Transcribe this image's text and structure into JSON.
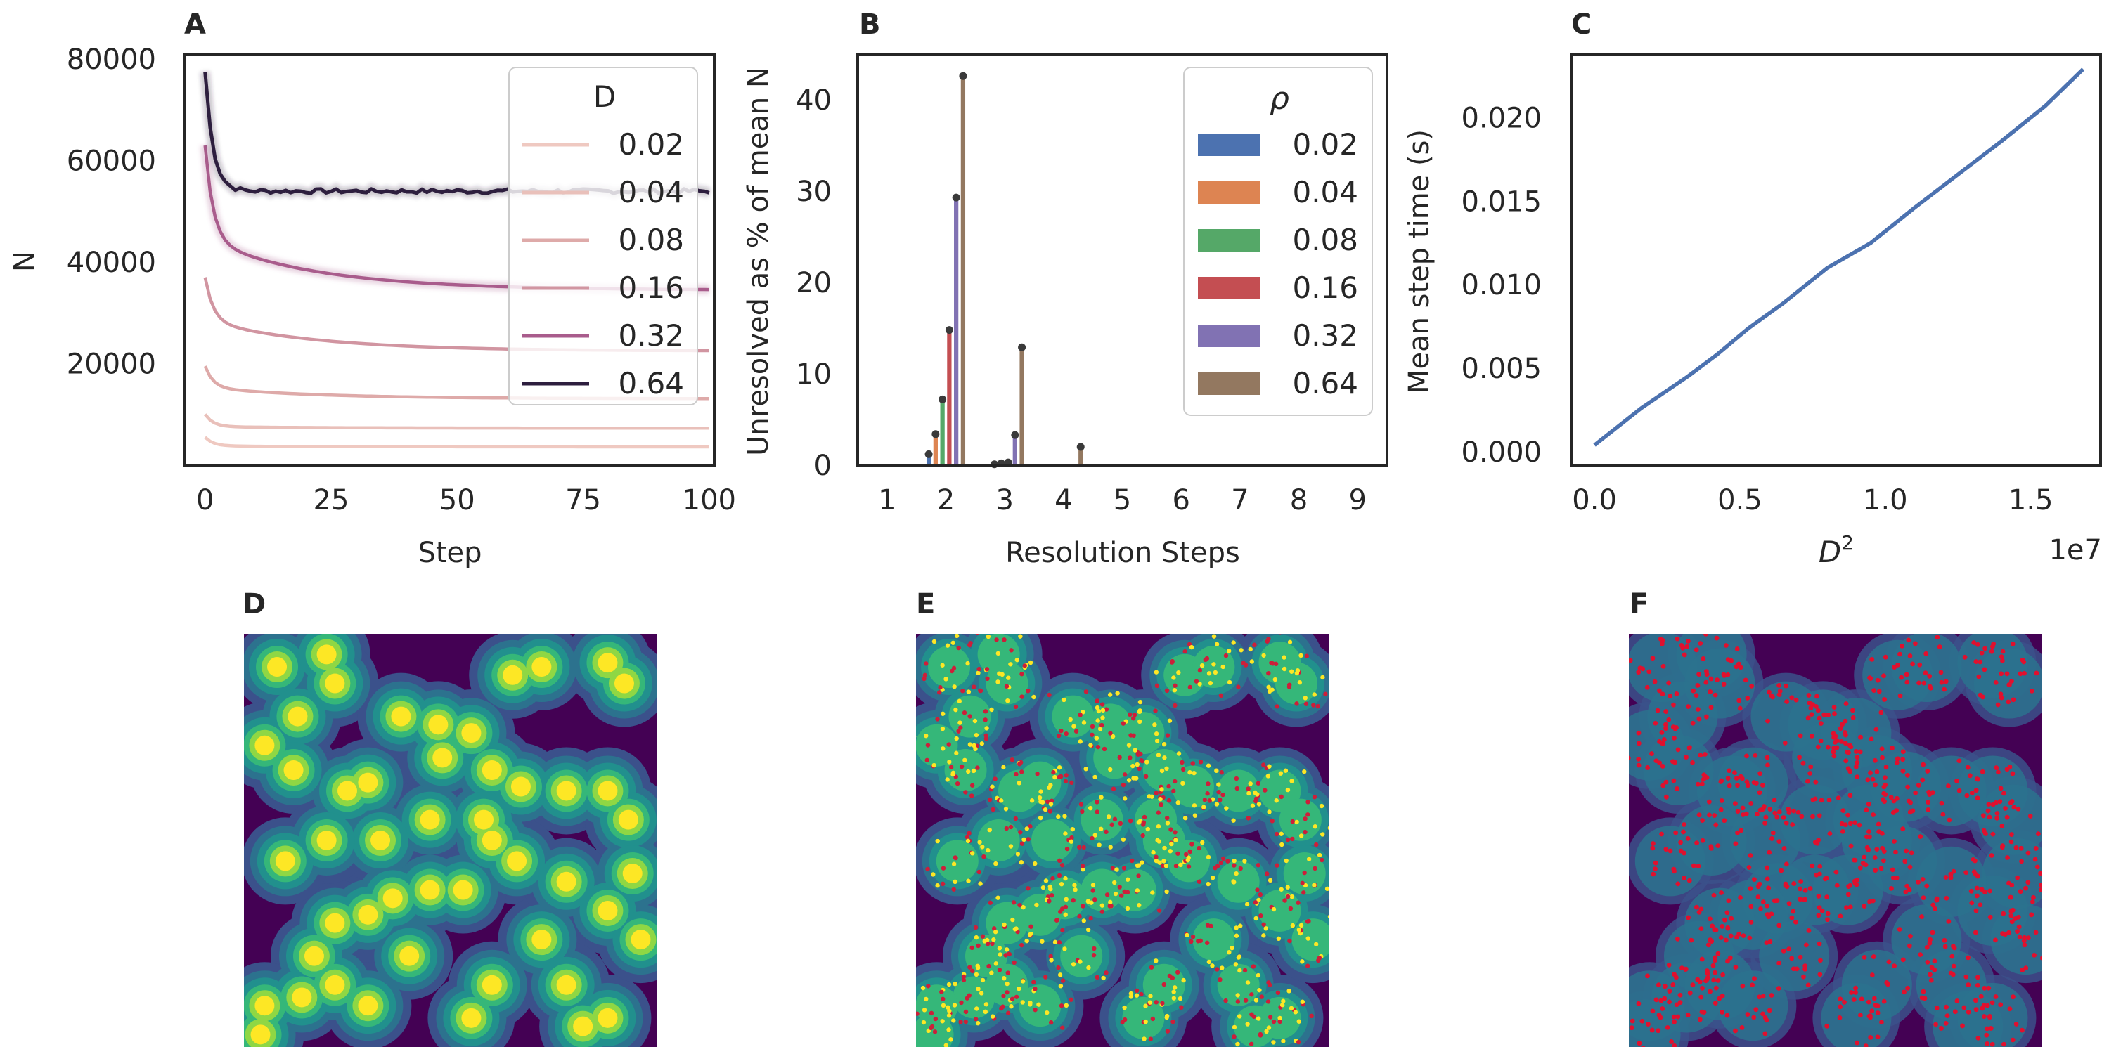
{
  "panel_labels": [
    "A",
    "B",
    "C",
    "D",
    "E",
    "F"
  ],
  "chart_data": [
    {
      "panel": "A",
      "type": "line",
      "xlabel": "Step",
      "ylabel": "N",
      "xlim": [
        -4,
        101
      ],
      "ylim": [
        0,
        81000
      ],
      "xticks": [
        0,
        25,
        50,
        75,
        100
      ],
      "yticks": [
        20000,
        40000,
        60000,
        80000
      ],
      "grid": false,
      "legend": {
        "title": "D",
        "placement": "top-right"
      },
      "series": [
        {
          "name": "0.02",
          "color": "#efc9c1",
          "start": 5500,
          "plateau": 3800,
          "final": 3600
        },
        {
          "name": "0.04",
          "color": "#e9c0ba",
          "start": 10000,
          "plateau": 7600,
          "final": 7300
        },
        {
          "name": "0.08",
          "color": "#deaaa9",
          "start": 19500,
          "plateau": 15300,
          "final": 13100
        },
        {
          "name": "0.16",
          "color": "#d195a1",
          "start": 37000,
          "plateau": 28500,
          "final": 22500
        },
        {
          "name": "0.32",
          "color": "#a95c8c",
          "start": 63000,
          "plateau": 44500,
          "final": 34500
        },
        {
          "name": "0.64",
          "color": "#2d1e3e",
          "start": 77500,
          "plateau": 54000,
          "final": 54000
        }
      ]
    },
    {
      "panel": "B",
      "type": "bar",
      "xlabel": "Resolution Steps",
      "ylabel": "Unresolved as % of mean N",
      "xlim": [
        0.5,
        9.5
      ],
      "ylim": [
        0,
        45
      ],
      "xticks": [
        1,
        2,
        3,
        4,
        5,
        6,
        7,
        8,
        9
      ],
      "yticks": [
        0,
        10,
        20,
        30,
        40
      ],
      "grid": false,
      "legend": {
        "title": "ρ",
        "placement": "top-right"
      },
      "categories": [
        1,
        2,
        3,
        4,
        5,
        6,
        7,
        8,
        9
      ],
      "series": [
        {
          "name": "0.02",
          "color": "#4c72b0",
          "values": [
            0,
            1.2,
            0,
            0,
            0,
            0,
            0,
            0,
            0
          ]
        },
        {
          "name": "0.04",
          "color": "#dd8452",
          "values": [
            0,
            3.4,
            0.1,
            0,
            0,
            0,
            0,
            0,
            0
          ]
        },
        {
          "name": "0.08",
          "color": "#55a868",
          "values": [
            0,
            7.2,
            0.2,
            0,
            0,
            0,
            0,
            0,
            0
          ]
        },
        {
          "name": "0.16",
          "color": "#c44e52",
          "values": [
            0,
            14.8,
            0.3,
            0,
            0,
            0,
            0,
            0,
            0
          ]
        },
        {
          "name": "0.32",
          "color": "#8172b3",
          "values": [
            0,
            29.3,
            3.3,
            0,
            0,
            0,
            0,
            0,
            0
          ]
        },
        {
          "name": "0.64",
          "color": "#937860",
          "values": [
            0,
            42.6,
            12.9,
            2.0,
            0,
            0,
            0,
            0,
            0
          ]
        }
      ]
    },
    {
      "panel": "C",
      "type": "line",
      "xlabel": "D",
      "xlabel_superscript": "2",
      "x_offset_label": "1e7",
      "ylabel": "Mean step time (s)",
      "xlim": [
        -0.08,
        1.74
      ],
      "ylim": [
        -0.0008,
        0.0238
      ],
      "xticks": [
        "0.0",
        "0.5",
        "1.0",
        "1.5"
      ],
      "yticks": [
        "0.000",
        "0.005",
        "0.010",
        "0.015",
        "0.020"
      ],
      "grid": false,
      "series": [
        {
          "color": "#4c72b0",
          "x": [
            0.0,
            0.16,
            0.32,
            0.42,
            0.53,
            0.65,
            0.8,
            0.95,
            1.1,
            1.25,
            1.4,
            1.55,
            1.68
          ],
          "y": [
            0.0004,
            0.0026,
            0.0045,
            0.0058,
            0.0074,
            0.0089,
            0.011,
            0.0125,
            0.0146,
            0.0166,
            0.0186,
            0.0207,
            0.0229
          ]
        }
      ]
    }
  ]
}
